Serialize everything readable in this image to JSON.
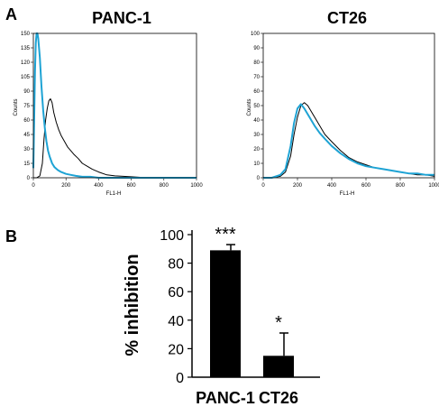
{
  "panels": {
    "a": {
      "label": "A"
    },
    "b": {
      "label": "B"
    }
  },
  "colors": {
    "black_series": "#000000",
    "blue_series": "#1ea3d4",
    "bar_fill": "#000000"
  },
  "chart_data": [
    {
      "type": "line",
      "title": "PANC-1",
      "xlabel": "FL1-H",
      "ylabel": "Counts",
      "xlim": [
        0,
        1000
      ],
      "ylim": [
        0,
        150
      ],
      "xticks": [
        0,
        200,
        400,
        600,
        800,
        1000
      ],
      "yticks": [
        0,
        15,
        30,
        45,
        60,
        75,
        90,
        105,
        120,
        135,
        150
      ],
      "series": [
        {
          "color": "#000000",
          "x": [
            0,
            20,
            40,
            55,
            65,
            75,
            85,
            95,
            105,
            115,
            125,
            140,
            155,
            170,
            190,
            210,
            230,
            250,
            275,
            300,
            330,
            360,
            400,
            450,
            500,
            600,
            700,
            800,
            900,
            1000
          ],
          "y": [
            0,
            0,
            2,
            15,
            40,
            60,
            72,
            80,
            82,
            78,
            68,
            58,
            50,
            44,
            38,
            32,
            28,
            24,
            20,
            15,
            12,
            9,
            6,
            3,
            2,
            1,
            0,
            0,
            0,
            0
          ]
        },
        {
          "color": "#1ea3d4",
          "x": [
            0,
            5,
            10,
            15,
            20,
            25,
            30,
            40,
            50,
            60,
            70,
            80,
            90,
            100,
            115,
            130,
            150,
            170,
            200,
            230,
            260,
            300,
            350,
            400,
            500,
            600,
            700,
            800,
            900,
            1000
          ],
          "y": [
            10,
            60,
            110,
            140,
            150,
            150,
            145,
            125,
            95,
            70,
            52,
            38,
            28,
            22,
            15,
            11,
            8,
            6,
            4,
            3,
            2,
            1,
            1,
            0,
            0,
            0,
            0,
            0,
            0,
            0
          ]
        }
      ]
    },
    {
      "type": "line",
      "title": "CT26",
      "xlabel": "FL1-H",
      "ylabel": "Counts",
      "xlim": [
        0,
        1000
      ],
      "ylim": [
        0,
        100
      ],
      "xticks": [
        0,
        200,
        400,
        600,
        800,
        1000
      ],
      "yticks": [
        0,
        10,
        20,
        30,
        40,
        50,
        60,
        70,
        80,
        90,
        100
      ],
      "series": [
        {
          "color": "#000000",
          "x": [
            0,
            50,
            100,
            130,
            160,
            180,
            200,
            220,
            240,
            260,
            280,
            300,
            330,
            360,
            400,
            450,
            500,
            550,
            600,
            650,
            700,
            750,
            800,
            850,
            900,
            950,
            1000
          ],
          "y": [
            0,
            0,
            1,
            4,
            15,
            30,
            42,
            50,
            52,
            50,
            46,
            42,
            36,
            30,
            25,
            19,
            14,
            11,
            9,
            7,
            6,
            5,
            4,
            3,
            2,
            2,
            1
          ]
        },
        {
          "color": "#1ea3d4",
          "x": [
            0,
            50,
            100,
            130,
            160,
            180,
            200,
            220,
            240,
            260,
            280,
            300,
            330,
            360,
            400,
            450,
            500,
            550,
            600,
            650,
            700,
            750,
            800,
            850,
            900,
            950,
            1000
          ],
          "y": [
            0,
            0,
            2,
            6,
            22,
            38,
            48,
            51,
            48,
            44,
            40,
            36,
            31,
            27,
            22,
            17,
            13,
            10,
            8,
            7,
            6,
            5,
            4,
            3,
            3,
            2,
            2
          ]
        }
      ]
    },
    {
      "type": "bar",
      "categories": [
        "PANC-1",
        "CT26"
      ],
      "values": [
        89,
        15
      ],
      "errors": [
        4,
        16
      ],
      "annotations": [
        "***",
        "*"
      ],
      "ylabel": "% inhibition",
      "ylim": [
        0,
        100
      ],
      "yticks": [
        0,
        20,
        40,
        60,
        80,
        100
      ]
    }
  ]
}
